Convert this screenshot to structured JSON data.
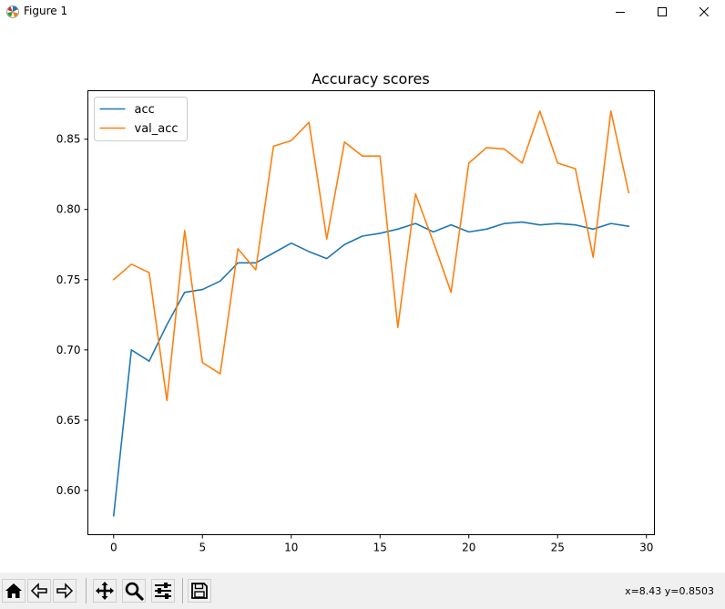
{
  "window": {
    "title": "Figure 1"
  },
  "toolbar": {
    "buttons": [
      {
        "icon": "home-icon"
      },
      {
        "icon": "back-icon"
      },
      {
        "icon": "forward-icon"
      },
      {
        "icon": "pan-icon"
      },
      {
        "icon": "zoom-icon"
      },
      {
        "icon": "configure-subplots-icon"
      },
      {
        "icon": "save-icon"
      }
    ],
    "coordinates": "x=8.43 y=0.8503"
  },
  "chart_data": {
    "type": "line",
    "title": "Accuracy scores",
    "xlabel": "",
    "ylabel": "",
    "xlim": [
      -1.45,
      30.45
    ],
    "ylim": [
      0.5685,
      0.8845
    ],
    "xticks": [
      0,
      5,
      10,
      15,
      20,
      25,
      30
    ],
    "yticks": [
      0.6,
      0.65,
      0.7,
      0.75,
      0.8,
      0.85
    ],
    "ytick_labels": [
      "0.60",
      "0.65",
      "0.70",
      "0.75",
      "0.80",
      "0.85"
    ],
    "grid": false,
    "legend_position": "top-left",
    "x": [
      0,
      1,
      2,
      3,
      4,
      5,
      6,
      7,
      8,
      9,
      10,
      11,
      12,
      13,
      14,
      15,
      16,
      17,
      18,
      19,
      20,
      21,
      22,
      23,
      24,
      25,
      26,
      27,
      28,
      29
    ],
    "series": [
      {
        "name": "acc",
        "color": "#1f77b4",
        "values": [
          0.582,
          0.7,
          0.692,
          0.718,
          0.741,
          0.743,
          0.749,
          0.762,
          0.762,
          0.769,
          0.776,
          0.77,
          0.765,
          0.775,
          0.781,
          0.783,
          0.786,
          0.79,
          0.784,
          0.789,
          0.784,
          0.786,
          0.79,
          0.791,
          0.789,
          0.79,
          0.789,
          0.786,
          0.79,
          0.788
        ]
      },
      {
        "name": "val_acc",
        "color": "#ff7f0e",
        "values": [
          0.75,
          0.761,
          0.755,
          0.664,
          0.785,
          0.691,
          0.683,
          0.772,
          0.757,
          0.845,
          0.849,
          0.862,
          0.779,
          0.848,
          0.838,
          0.838,
          0.716,
          0.811,
          0.777,
          0.741,
          0.833,
          0.844,
          0.843,
          0.833,
          0.87,
          0.833,
          0.829,
          0.766,
          0.87,
          0.812
        ]
      }
    ]
  }
}
